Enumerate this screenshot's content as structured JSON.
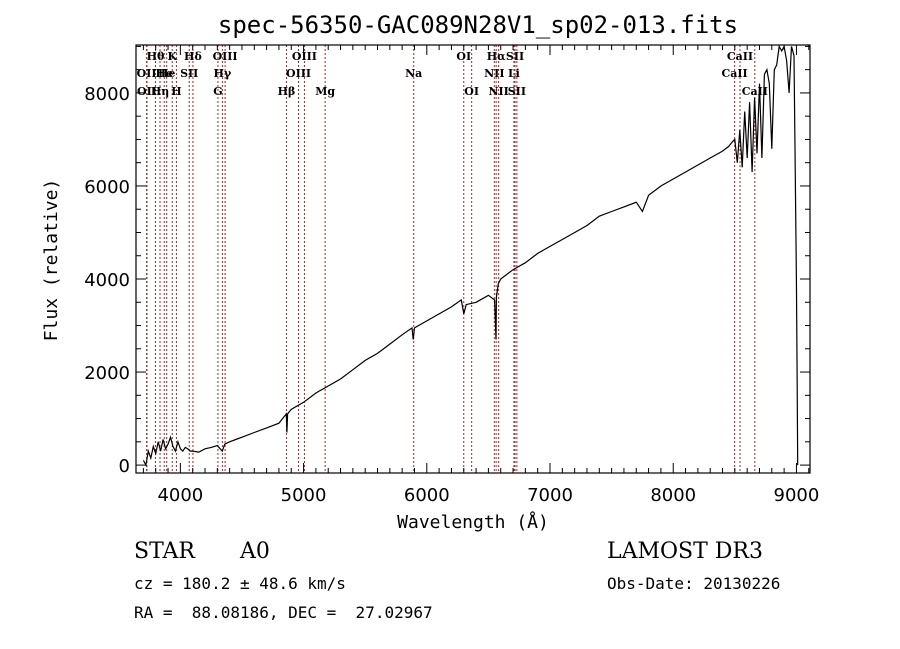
{
  "chart_data": {
    "type": "line",
    "title": "spec-56350-GAC089N28V1_sp02-013.fits",
    "xlabel": "Wavelength (Å)",
    "ylabel": "Flux (relative)",
    "xlim": [
      3640,
      9110
    ],
    "ylim": [
      -170,
      9030
    ],
    "xticks": [
      4000,
      5000,
      6000,
      7000,
      8000,
      9000
    ],
    "xtick_labels": [
      "4000",
      "5000",
      "6000",
      "7000",
      "8000",
      "9000"
    ],
    "yticks": [
      0,
      2000,
      4000,
      6000,
      8000
    ],
    "ytick_labels": [
      "0",
      "2000",
      "4000",
      "6000",
      "8000"
    ],
    "grid": false,
    "series": [
      {
        "name": "spectrum",
        "color": "#000000",
        "x": [
          3700,
          3720,
          3740,
          3760,
          3780,
          3800,
          3820,
          3840,
          3860,
          3880,
          3900,
          3920,
          3940,
          3960,
          3980,
          4000,
          4020,
          4040,
          4060,
          4080,
          4100,
          4150,
          4200,
          4250,
          4300,
          4340,
          4360,
          4400,
          4450,
          4500,
          4600,
          4700,
          4800,
          4860,
          4865,
          4870,
          4900,
          5000,
          5100,
          5200,
          5300,
          5400,
          5500,
          5600,
          5700,
          5800,
          5880,
          5890,
          5900,
          6000,
          6100,
          6200,
          6280,
          6300,
          6320,
          6400,
          6500,
          6550,
          6562,
          6565,
          6580,
          6600,
          6700,
          6800,
          6900,
          7000,
          7100,
          7200,
          7300,
          7400,
          7500,
          7600,
          7700,
          7750,
          7800,
          7900,
          8000,
          8100,
          8200,
          8300,
          8400,
          8450,
          8480,
          8500,
          8520,
          8540,
          8560,
          8580,
          8600,
          8620,
          8640,
          8660,
          8680,
          8700,
          8720,
          8740,
          8760,
          8780,
          8800,
          8820,
          8840,
          8860,
          8880,
          8900,
          8920,
          8940,
          8960,
          8980,
          9000,
          9005,
          9010
        ],
        "y": [
          100,
          0,
          300,
          150,
          400,
          250,
          500,
          300,
          550,
          350,
          450,
          600,
          400,
          300,
          500,
          350,
          300,
          380,
          350,
          300,
          300,
          280,
          350,
          380,
          420,
          300,
          450,
          500,
          550,
          600,
          700,
          800,
          900,
          1100,
          700,
          1100,
          1200,
          1350,
          1550,
          1700,
          1850,
          2050,
          2250,
          2400,
          2600,
          2800,
          2950,
          2700,
          2950,
          3100,
          3250,
          3400,
          3550,
          3250,
          3450,
          3500,
          3650,
          3550,
          2700,
          3600,
          3900,
          4000,
          4200,
          4350,
          4550,
          4700,
          4850,
          5000,
          5150,
          5350,
          5450,
          5550,
          5650,
          5450,
          5800,
          6000,
          6150,
          6300,
          6450,
          6600,
          6750,
          6850,
          6950,
          7000,
          6500,
          7200,
          6400,
          7600,
          6600,
          7800,
          6300,
          7900,
          6700,
          8200,
          6600,
          8400,
          8500,
          8200,
          6800,
          8500,
          8600,
          9000,
          8900,
          9000,
          8700,
          8000,
          9000,
          8800,
          4000,
          2000,
          0
        ]
      }
    ],
    "line_markers": {
      "color": "#b22222",
      "lines": [
        {
          "wavelength": 3726,
          "label": "OII",
          "row": 2
        },
        {
          "wavelength": 3729,
          "label": "OII",
          "row": 3
        },
        {
          "wavelength": 3798,
          "label": "Hθ",
          "row": 1
        },
        {
          "wavelength": 3835,
          "label": "Hη",
          "row": 3
        },
        {
          "wavelength": 3869,
          "label": "He",
          "row": 2
        },
        {
          "wavelength": 3889,
          "label": "He",
          "row": 2
        },
        {
          "wavelength": 3934,
          "label": "K",
          "row": 1
        },
        {
          "wavelength": 3968,
          "label": "H",
          "row": 3
        },
        {
          "wavelength": 4072,
          "label": "SII",
          "row": 2
        },
        {
          "wavelength": 4102,
          "label": "Hδ",
          "row": 1
        },
        {
          "wavelength": 4305,
          "label": "G",
          "row": 3
        },
        {
          "wavelength": 4341,
          "label": "Hγ",
          "row": 2
        },
        {
          "wavelength": 4363,
          "label": "OIII",
          "row": 1
        },
        {
          "wavelength": 4861,
          "label": "Hβ",
          "row": 3
        },
        {
          "wavelength": 4959,
          "label": "OIII",
          "row": 2
        },
        {
          "wavelength": 5007,
          "label": "OIII",
          "row": 1
        },
        {
          "wavelength": 5175,
          "label": "Mg",
          "row": 3
        },
        {
          "wavelength": 5894,
          "label": "Na",
          "row": 2
        },
        {
          "wavelength": 6300,
          "label": "OI",
          "row": 1
        },
        {
          "wavelength": 6364,
          "label": "OI",
          "row": 3
        },
        {
          "wavelength": 6548,
          "label": "NII",
          "row": 2
        },
        {
          "wavelength": 6563,
          "label": "Hα",
          "row": 1
        },
        {
          "wavelength": 6583,
          "label": "NII",
          "row": 3
        },
        {
          "wavelength": 6707,
          "label": "Li",
          "row": 2
        },
        {
          "wavelength": 6716,
          "label": "SII",
          "row": 1
        },
        {
          "wavelength": 6731,
          "label": "SII",
          "row": 3
        },
        {
          "wavelength": 8498,
          "label": "CaII",
          "row": 2
        },
        {
          "wavelength": 8542,
          "label": "CaII",
          "row": 1
        },
        {
          "wavelength": 8662,
          "label": "CaII",
          "row": 3
        }
      ]
    }
  },
  "info": {
    "object_class": "STAR",
    "subclass": "A0",
    "redshift": "cz = 180.2 ± 48.6 km/s",
    "coords": "RA =  88.08186, DEC =  27.02967",
    "survey": "LAMOST DR3",
    "obs_date": "Obs-Date: 20130226"
  }
}
